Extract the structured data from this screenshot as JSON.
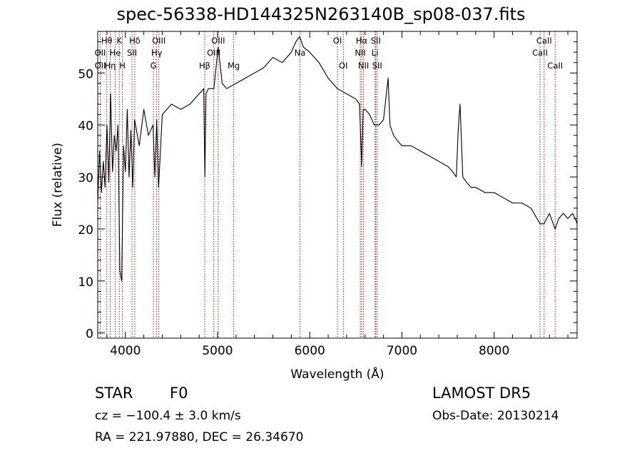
{
  "chart_data": {
    "type": "line",
    "title": "spec-56338-HD144325N263140B_sp08-037.fits",
    "xlabel": "Wavelength (Å)",
    "ylabel": "Flux (relative)",
    "xlim": [
      3700,
      8900
    ],
    "ylim": [
      -1,
      58
    ],
    "xticks": [
      4000,
      5000,
      6000,
      7000,
      8000
    ],
    "yticks": [
      0,
      10,
      20,
      30,
      40,
      50
    ],
    "grid": false,
    "series": [
      {
        "x": [
          3700,
          3720,
          3740,
          3760,
          3780,
          3800,
          3820,
          3840,
          3860,
          3880,
          3900,
          3920,
          3940,
          3960,
          3980,
          4000,
          4020,
          4040,
          4060,
          4080,
          4100,
          4150,
          4200,
          4250,
          4300,
          4320,
          4340,
          4360,
          4400,
          4500,
          4600,
          4700,
          4800,
          4850,
          4862,
          4875,
          4900,
          4960,
          5007,
          5050,
          5100,
          5200,
          5300,
          5400,
          5500,
          5600,
          5700,
          5800,
          5850,
          5890,
          5930,
          6000,
          6100,
          6200,
          6300,
          6400,
          6500,
          6540,
          6563,
          6580,
          6600,
          6650,
          6700,
          6750,
          6800,
          6850,
          6870,
          6890,
          6910,
          6950,
          7000,
          7100,
          7200,
          7300,
          7400,
          7500,
          7550,
          7590,
          7610,
          7630,
          7660,
          7700,
          7750,
          7800,
          7900,
          8000,
          8100,
          8200,
          8300,
          8400,
          8498,
          8542,
          8600,
          8662,
          8700,
          8750,
          8800,
          8850,
          8880,
          8900
        ],
        "y": [
          25,
          35,
          27,
          33,
          28,
          40,
          29,
          46,
          31,
          38,
          35,
          40,
          12,
          10,
          36,
          31,
          43,
          30,
          39,
          28,
          41,
          36,
          43,
          38,
          40,
          30,
          41,
          28,
          42,
          44,
          43,
          44,
          46,
          47,
          30,
          46,
          47,
          47,
          55,
          48,
          47,
          48,
          49,
          50,
          51,
          53,
          52,
          54,
          56,
          57,
          55,
          54,
          52,
          49,
          47,
          46,
          45,
          44,
          32,
          43,
          43,
          42,
          40,
          40,
          41,
          49,
          40,
          39,
          38,
          37,
          36,
          36,
          35,
          34,
          33,
          32,
          31,
          30,
          39,
          44,
          30,
          29,
          28,
          28,
          27,
          27,
          26,
          25,
          25,
          24,
          21,
          21,
          23,
          20,
          22,
          23,
          22,
          23,
          22,
          21
        ]
      }
    ],
    "line_markers": [
      {
        "label": "Hθ",
        "x": 3798,
        "row": 0
      },
      {
        "label": "K",
        "x": 3934,
        "row": 0
      },
      {
        "label": "Hδ",
        "x": 4102,
        "row": 0
      },
      {
        "label": "OIII",
        "x": 4363,
        "row": 0
      },
      {
        "label": "OIII",
        "x": 5007,
        "row": 0
      },
      {
        "label": "OI",
        "x": 6300,
        "row": 0
      },
      {
        "label": "Hα",
        "x": 6563,
        "row": 0
      },
      {
        "label": "SII",
        "x": 6716,
        "row": 0
      },
      {
        "label": "CaII",
        "x": 8542,
        "row": 0
      },
      {
        "label": "OII",
        "x": 3727,
        "row": 1
      },
      {
        "label": "He",
        "x": 3889,
        "row": 1
      },
      {
        "label": "SII",
        "x": 4072,
        "row": 1
      },
      {
        "label": "Hγ",
        "x": 4340,
        "row": 1
      },
      {
        "label": "OIII",
        "x": 4959,
        "row": 1
      },
      {
        "label": "Na",
        "x": 5893,
        "row": 1
      },
      {
        "label": "NII",
        "x": 6548,
        "row": 1
      },
      {
        "label": "Li",
        "x": 6708,
        "row": 1
      },
      {
        "label": "CaII",
        "x": 8498,
        "row": 1
      },
      {
        "label": "OII",
        "x": 3727,
        "row": 2
      },
      {
        "label": "Hη",
        "x": 3835,
        "row": 2
      },
      {
        "label": "H",
        "x": 3968,
        "row": 2
      },
      {
        "label": "G",
        "x": 4304,
        "row": 2
      },
      {
        "label": "Hβ",
        "x": 4861,
        "row": 2
      },
      {
        "label": "Mg",
        "x": 5175,
        "row": 2
      },
      {
        "label": "OI",
        "x": 6364,
        "row": 2
      },
      {
        "label": "NII",
        "x": 6583,
        "row": 2
      },
      {
        "label": "SII",
        "x": 6731,
        "row": 2
      },
      {
        "label": "CaII",
        "x": 8662,
        "row": 2
      }
    ]
  },
  "info": {
    "object_class": "STAR",
    "subclass": "F0",
    "survey": "LAMOST DR5",
    "cz": "cz = −100.4 ± 3.0 km/s",
    "obs_date": "Obs-Date: 20130214",
    "radec": "RA = 221.97880, DEC =  26.34670"
  },
  "colors": {
    "spectrum": "#000000",
    "marker_lines": "#9b1a1a",
    "axes": "#000000",
    "background": "#ffffff"
  }
}
